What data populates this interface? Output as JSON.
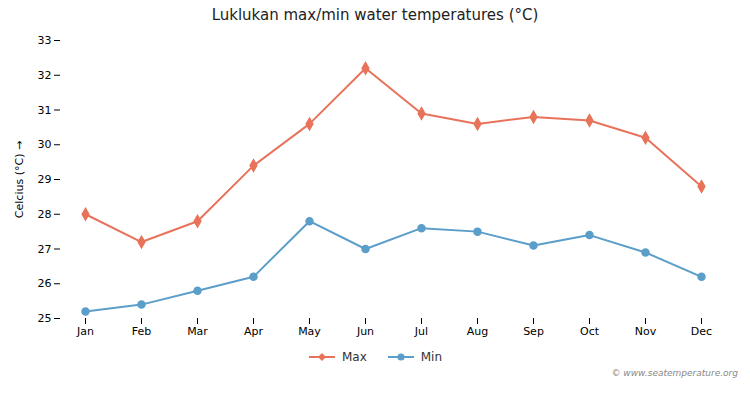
{
  "chart_data": {
    "type": "line",
    "title": "Luklukan max/min water temperatures (°C)",
    "ylabel": "Celcius (°C)",
    "categories": [
      "Jan",
      "Feb",
      "Mar",
      "Apr",
      "May",
      "Jun",
      "Jul",
      "Aug",
      "Sep",
      "Oct",
      "Nov",
      "Dec"
    ],
    "series": [
      {
        "name": "Max",
        "color": "#E8735A",
        "marker": "diamond",
        "values": [
          28.0,
          27.2,
          27.8,
          29.4,
          30.6,
          32.2,
          30.9,
          30.6,
          30.8,
          30.7,
          30.2,
          28.8
        ]
      },
      {
        "name": "Min",
        "color": "#5B9EC9",
        "marker": "circle",
        "values": [
          25.2,
          25.4,
          25.8,
          26.2,
          27.8,
          27.0,
          27.6,
          27.5,
          27.1,
          27.4,
          26.9,
          26.2
        ]
      }
    ],
    "ylim": [
      25,
      33
    ],
    "yticks": [
      25,
      26,
      27,
      28,
      29,
      30,
      31,
      32,
      33
    ],
    "grid": false,
    "legend": "bottom",
    "annotations": [
      "© www.seatemperature.org"
    ]
  }
}
